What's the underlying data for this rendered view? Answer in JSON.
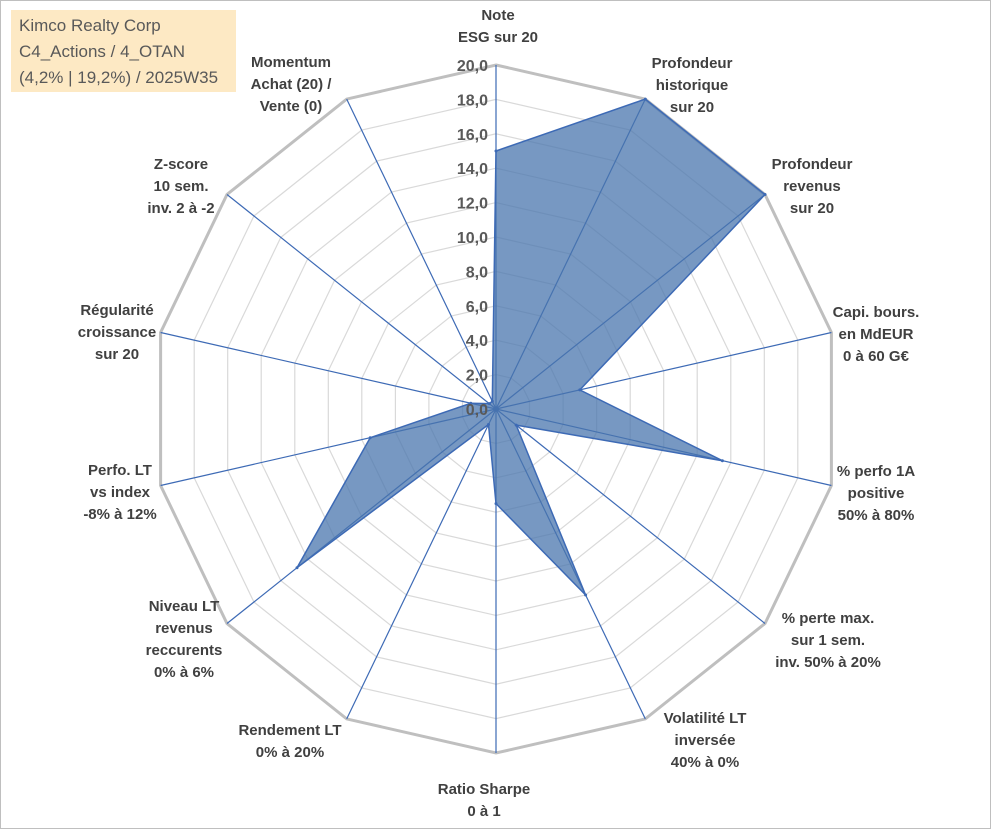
{
  "title_box": {
    "line1": "Kimco Realty Corp",
    "line2": "C4_Actions / 4_OTAN",
    "line3": "(4,2% | 19,2%) / 2025W35"
  },
  "chart_data": {
    "type": "radar",
    "grid": true,
    "r_range": [
      0,
      20
    ],
    "r_step": 2,
    "tick_labels": [
      "0,0",
      "2,0",
      "4,0",
      "6,0",
      "8,0",
      "10,0",
      "12,0",
      "14,0",
      "16,0",
      "18,0",
      "20,0"
    ],
    "categories": [
      [
        "Note",
        "ESG sur 20"
      ],
      [
        "Profondeur",
        "historique",
        "sur 20"
      ],
      [
        "Profondeur",
        "revenus",
        "sur 20"
      ],
      [
        "Capi. bours.",
        "en MdEUR",
        "0 à 60 G€"
      ],
      [
        "% perfo 1A",
        "positive",
        "50% à 80%"
      ],
      [
        "% perte max.",
        "sur 1 sem.",
        "inv. 50% à 20%"
      ],
      [
        "Volatilité LT",
        "inversée",
        "40% à 0%"
      ],
      [
        "Ratio Sharpe",
        "0 à 1"
      ],
      [
        "Rendement LT",
        "0% à 20%"
      ],
      [
        "Niveau LT",
        "revenus",
        "reccurents",
        "0% à 6%"
      ],
      [
        "Perfo. LT",
        "vs index",
        "-8% à 12%"
      ],
      [
        "Régularité",
        "croissance",
        "sur 20"
      ],
      [
        "Z-score",
        "10 sem.",
        "inv. 2 à -2"
      ],
      [
        "Momentum",
        "Achat (20) /",
        "Vente (0)"
      ]
    ],
    "series": [
      {
        "values": [
          15,
          20,
          20,
          5,
          13.5,
          1.5,
          12,
          5.5,
          1,
          14.8,
          7.5,
          1.5,
          0.5,
          0.5
        ],
        "color": "#4a76ae"
      }
    ]
  },
  "colors": {
    "grid_outer": "#bfbfbf",
    "grid_inner": "#d9d9d9",
    "spoke": "#3d6ab5",
    "fill": "#4a76ae"
  }
}
